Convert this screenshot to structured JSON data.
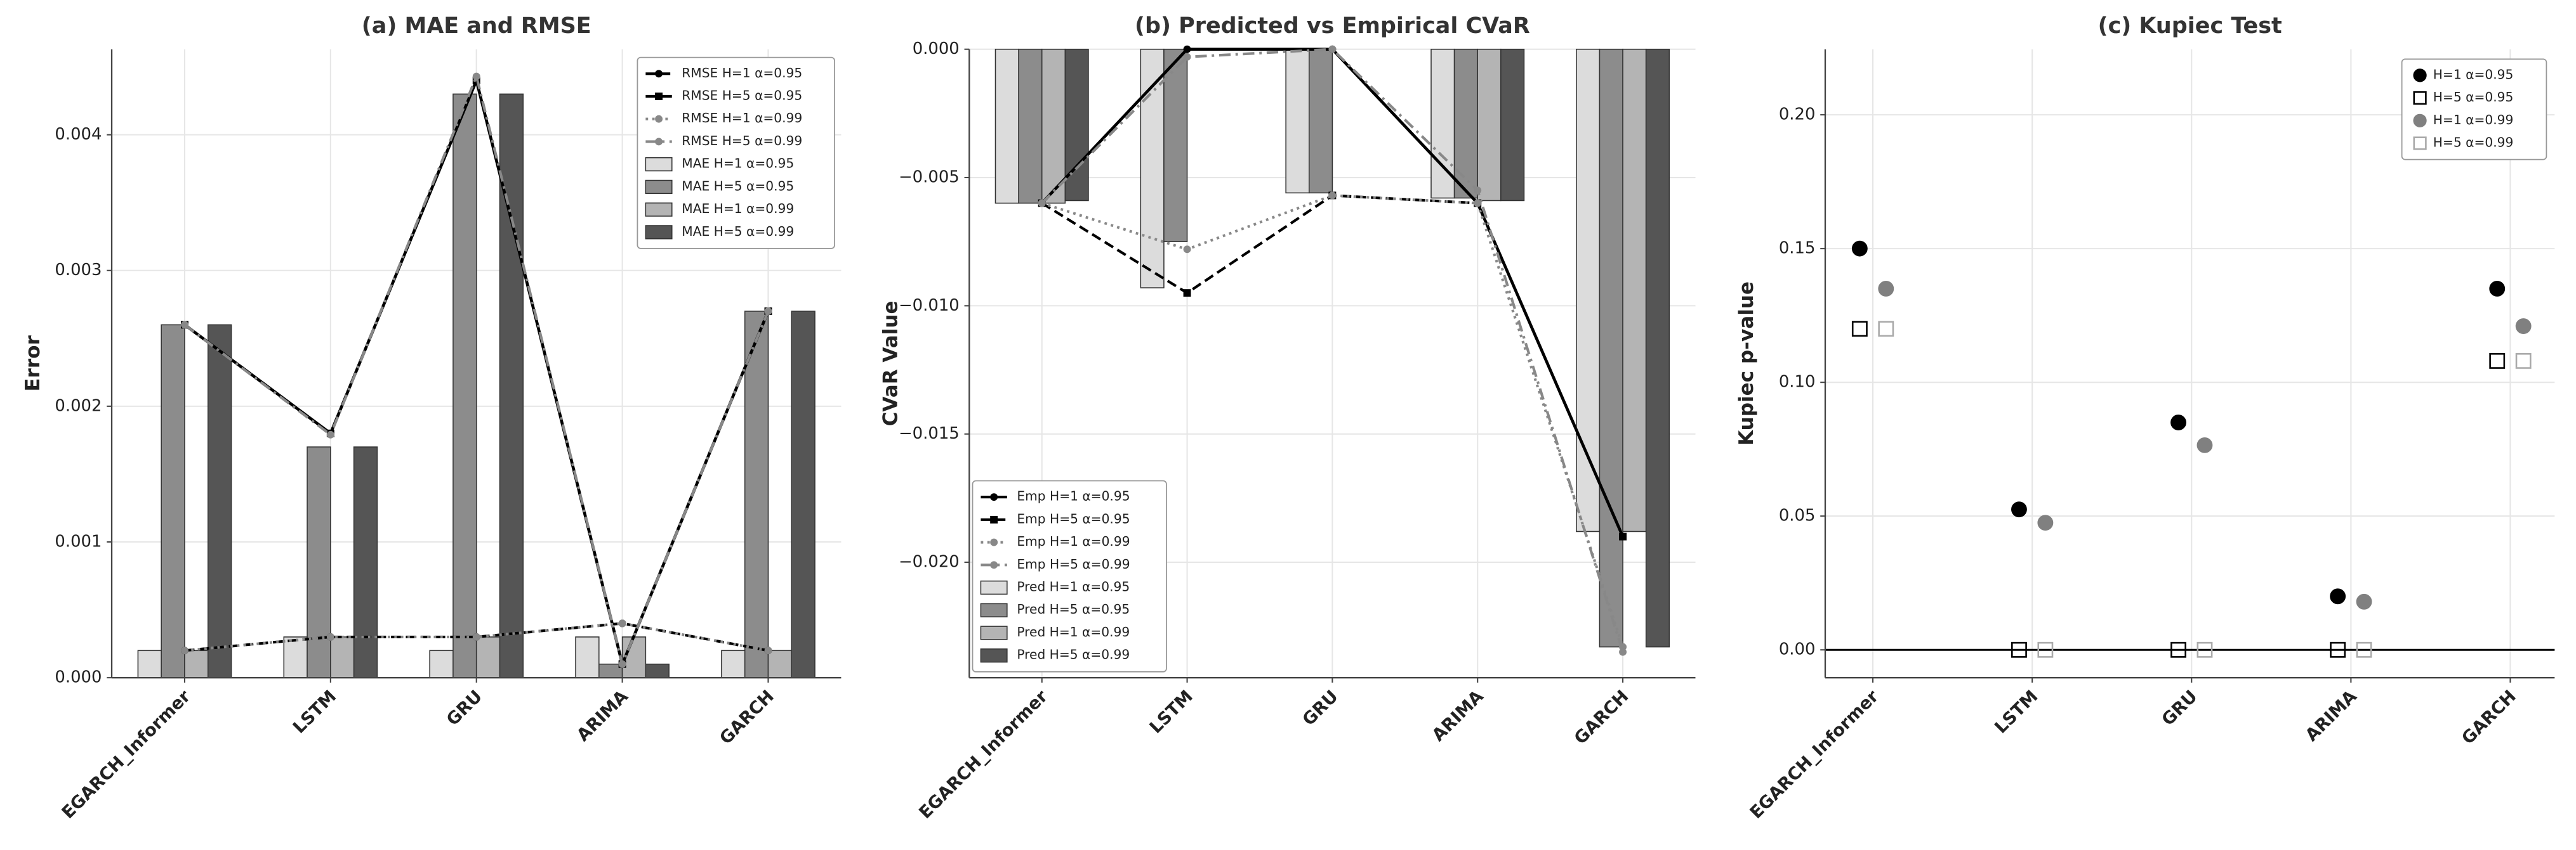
{
  "chart_data": [
    {
      "type": "bar",
      "title": "(a) MAE and RMSE",
      "ylabel": "Error",
      "categories": [
        "EGARCH_Informer",
        "LSTM",
        "GRU",
        "ARIMA",
        "GARCH"
      ],
      "ylim": [
        0,
        0.00463
      ],
      "yticks": [
        {
          "value": 0,
          "label": "0.000"
        },
        {
          "value": 0.001,
          "label": "0.001"
        },
        {
          "value": 0.002,
          "label": "0.002"
        },
        {
          "value": 0.003,
          "label": "0.003"
        },
        {
          "value": 0.004,
          "label": "0.004"
        }
      ],
      "grid": true,
      "legend": "upper right",
      "series": [
        {
          "name": "RMSE H=1 α=0.95",
          "type": "line",
          "linestyle": "dashed",
          "marker": "o",
          "color": "#000000",
          "values": [
            0.0002,
            0.0003,
            0.0003,
            0.0004,
            0.0002
          ]
        },
        {
          "name": "RMSE H=5 α=0.95",
          "type": "line",
          "linestyle": "solid",
          "marker": "s",
          "color": "#000000",
          "values": [
            0.0026,
            0.0018,
            0.0044,
            0.0001,
            0.0027
          ]
        },
        {
          "name": "RMSE H=1 α=0.99",
          "type": "line",
          "linestyle": "dotted",
          "marker": "o",
          "color": "#888888",
          "values": [
            0.0002,
            0.0003,
            0.0003,
            0.0004,
            0.0002
          ]
        },
        {
          "name": "RMSE H=5 α=0.99",
          "type": "line",
          "linestyle": "dashdot",
          "marker": "o",
          "color": "#888888",
          "values": [
            0.0026,
            0.00179,
            0.00443,
            0.0001,
            0.0027
          ]
        },
        {
          "name": "MAE H=1 α=0.95",
          "type": "bar",
          "color": "#dcdcdc",
          "values": [
            0.0002,
            0.0003,
            0.0002,
            0.0003,
            0.0002
          ]
        },
        {
          "name": "MAE H=5 α=0.95",
          "type": "bar",
          "color": "#8c8c8c",
          "values": [
            0.0026,
            0.0017,
            0.0043,
            0.0001,
            0.0027
          ]
        },
        {
          "name": "MAE H=1 α=0.99",
          "type": "bar",
          "color": "#b4b4b4",
          "values": [
            0.0002,
            0.0003,
            0.0003,
            0.0003,
            0.0002
          ]
        },
        {
          "name": "MAE H=5 α=0.99",
          "type": "bar",
          "color": "#555555",
          "values": [
            0.0026,
            0.0017,
            0.0043,
            0.0001,
            0.0027
          ]
        }
      ]
    },
    {
      "type": "bar",
      "title": "(b) Predicted vs Empirical CVaR",
      "ylabel": "CVaR Value",
      "categories": [
        "EGARCH_Informer",
        "LSTM",
        "GRU",
        "ARIMA",
        "GARCH"
      ],
      "ylim": [
        -0.0245,
        0
      ],
      "yticks": [
        {
          "value": -0.02,
          "label": "−0.020"
        },
        {
          "value": -0.015,
          "label": "−0.015"
        },
        {
          "value": -0.01,
          "label": "−0.010"
        },
        {
          "value": -0.005,
          "label": "−0.005"
        },
        {
          "value": 0,
          "label": "0.000"
        }
      ],
      "grid": true,
      "legend": "lower left",
      "series": [
        {
          "name": "Emp H=1 α=0.95",
          "type": "line",
          "linestyle": "solid",
          "marker": "o",
          "color": "#000000",
          "values": [
            -0.006,
            0,
            0,
            -0.006,
            -0.019
          ]
        },
        {
          "name": "Emp H=5 α=0.95",
          "type": "line",
          "linestyle": "dashed",
          "marker": "s",
          "color": "#000000",
          "values": [
            -0.006,
            -0.0095,
            -0.0057,
            -0.006,
            -0.019
          ]
        },
        {
          "name": "Emp H=1 α=0.99",
          "type": "line",
          "linestyle": "dotted",
          "marker": "o",
          "color": "#888888",
          "values": [
            -0.006,
            -0.0078,
            -0.0057,
            -0.006,
            -0.0233
          ]
        },
        {
          "name": "Emp H=5 α=0.99",
          "type": "line",
          "linestyle": "dashdot",
          "marker": "o",
          "color": "#888888",
          "values": [
            -0.006,
            -0.0003,
            0,
            -0.0055,
            -0.0235
          ]
        },
        {
          "name": "Pred H=1 α=0.95",
          "type": "bar",
          "color": "#dcdcdc",
          "values": [
            -0.006,
            -0.0093,
            -0.0056,
            -0.0058,
            -0.0188
          ]
        },
        {
          "name": "Pred H=5 α=0.95",
          "type": "bar",
          "color": "#8c8c8c",
          "values": [
            -0.006,
            -0.0075,
            -0.0056,
            -0.0058,
            -0.0233
          ]
        },
        {
          "name": "Pred H=1 α=0.99",
          "type": "bar",
          "color": "#b4b4b4",
          "values": [
            -0.006,
            0,
            0,
            -0.0059,
            -0.0188
          ]
        },
        {
          "name": "Pred H=5 α=0.99",
          "type": "bar",
          "color": "#555555",
          "values": [
            -0.0059,
            0,
            0,
            -0.0059,
            -0.0233
          ]
        }
      ]
    },
    {
      "type": "scatter",
      "title": "(c) Kupiec Test",
      "ylabel": "Kupiec p-value",
      "categories": [
        "EGARCH_Informer",
        "LSTM",
        "GRU",
        "ARIMA",
        "GARCH"
      ],
      "ylim": [
        -0.0104,
        0.2245
      ],
      "yticks": [
        {
          "value": 0,
          "label": "0.00"
        },
        {
          "value": 0.05,
          "label": "0.05"
        },
        {
          "value": 0.1,
          "label": "0.10"
        },
        {
          "value": 0.15,
          "label": "0.15"
        },
        {
          "value": 0.2,
          "label": "0.20"
        }
      ],
      "grid": true,
      "legend": "upper right",
      "hline": 0,
      "series": [
        {
          "name": "H=1 α=0.95",
          "marker": "o",
          "filled": true,
          "color": "#000000",
          "values": [
            0.15,
            0.0525,
            0.085,
            0.02,
            0.135
          ]
        },
        {
          "name": "H=5 α=0.95",
          "marker": "s",
          "filled": false,
          "color": "#000000",
          "values": [
            0.12,
            0,
            0,
            0,
            0.108
          ]
        },
        {
          "name": "H=1 α=0.99",
          "marker": "o",
          "filled": true,
          "color": "#808080",
          "values": [
            0.135,
            0.0475,
            0.0765,
            0.018,
            0.121
          ]
        },
        {
          "name": "H=5 α=0.99",
          "marker": "s",
          "filled": false,
          "color": "#aaaaaa",
          "values": [
            0.12,
            0,
            0,
            0,
            0.108
          ]
        }
      ]
    }
  ]
}
